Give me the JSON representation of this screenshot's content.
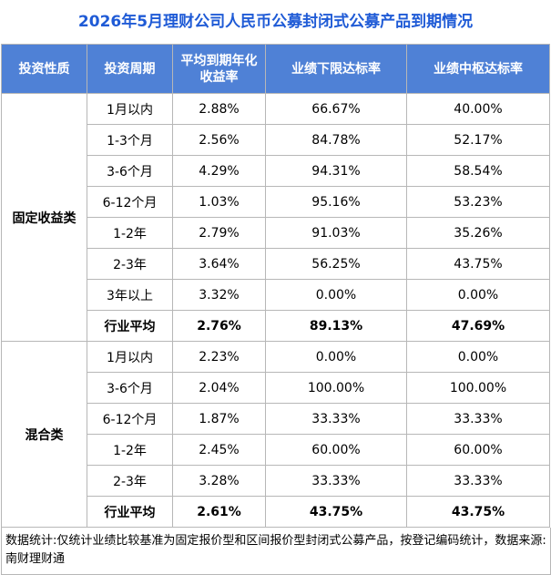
{
  "title": "2026年5月理财公司人民币公募封闭式公募产品到期情况",
  "headers": [
    "投资性质",
    "投资周期",
    "平均到期年化收益率",
    "业绩下限达标率",
    "业绩中枢达标率"
  ],
  "groups": [
    {
      "category": "固定收益类",
      "rows": [
        [
          "1月以内",
          "2.88%",
          "66.67%",
          "40.00%"
        ],
        [
          "1-3个月",
          "2.56%",
          "84.78%",
          "52.17%"
        ],
        [
          "3-6个月",
          "4.29%",
          "94.31%",
          "58.54%"
        ],
        [
          "6-12个月",
          "1.03%",
          "95.16%",
          "53.23%"
        ],
        [
          "1-2年",
          "2.79%",
          "91.03%",
          "35.26%"
        ],
        [
          "2-3年",
          "3.64%",
          "56.25%",
          "43.75%"
        ],
        [
          "3年以上",
          "3.32%",
          "0.00%",
          "0.00%"
        ]
      ],
      "average": [
        "行业平均",
        "2.76%",
        "89.13%",
        "47.69%"
      ]
    },
    {
      "category": "混合类",
      "rows": [
        [
          "1月以内",
          "2.23%",
          "0.00%",
          "0.00%"
        ],
        [
          "3-6个月",
          "2.04%",
          "100.00%",
          "100.00%"
        ],
        [
          "6-12个月",
          "1.87%",
          "33.33%",
          "33.33%"
        ],
        [
          "1-2年",
          "2.45%",
          "60.00%",
          "60.00%"
        ],
        [
          "2-3年",
          "3.28%",
          "33.33%",
          "33.33%"
        ]
      ],
      "average": [
        "行业平均",
        "2.61%",
        "43.75%",
        "43.75%"
      ]
    }
  ],
  "footnote": "数据统计:仅统计业绩比较基准为固定报价型和区间报价型封闭式公募产品，按登记编码统计，数据来源:南财理财通",
  "colors": {
    "title": "#1f5bd6",
    "header_bg": "#4f81d6",
    "header_text": "#ffffff",
    "border": "#b7b7b7"
  }
}
